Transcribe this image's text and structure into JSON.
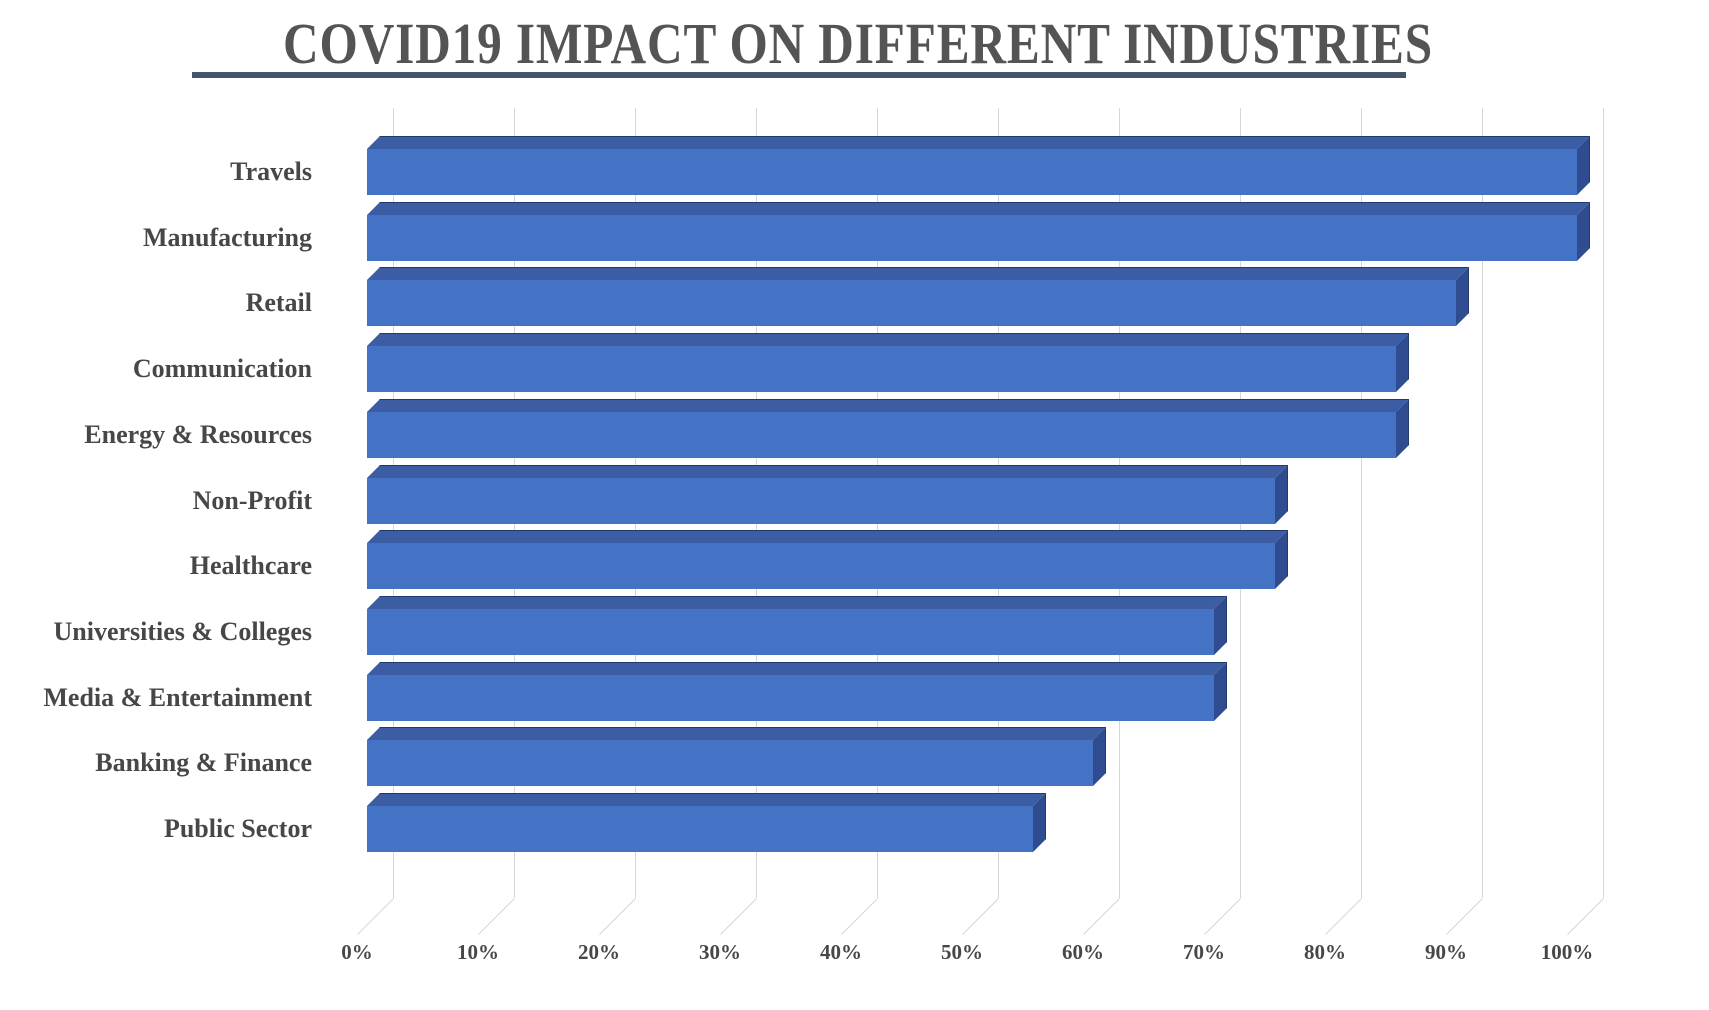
{
  "chart_data": {
    "type": "bar",
    "orientation": "horizontal",
    "style": "3d",
    "title": "COVID19 IMPACT ON DIFFERENT INDUSTRIES",
    "categories": [
      "Travels",
      "Manufacturing",
      "Retail",
      "Communication",
      "Energy & Resources",
      "Non-Profit",
      "Healthcare",
      "Universities & Colleges",
      "Media & Entertainment",
      "Banking & Finance",
      "Public Sector"
    ],
    "values": [
      100,
      100,
      90,
      85,
      85,
      75,
      75,
      70,
      70,
      60,
      55
    ],
    "unit": "%",
    "x_tick_labels": [
      "0%",
      "10%",
      "20%",
      "30%",
      "40%",
      "50%",
      "60%",
      "70%",
      "80%",
      "90%",
      "100%"
    ],
    "xlim": [
      0,
      100
    ],
    "grid": true,
    "legend": false,
    "xlabel": "",
    "ylabel": "",
    "colors": {
      "bar_front": "#4472C4",
      "bar_top": "#3C5CA3",
      "bar_side": "#2E4C8F",
      "bar_edge": "#203A6E",
      "gridline": "#D6D6D6",
      "title_text": "#545454",
      "label_text": "#474747",
      "title_underline": "#44546A",
      "background": "#FFFFFF"
    }
  }
}
